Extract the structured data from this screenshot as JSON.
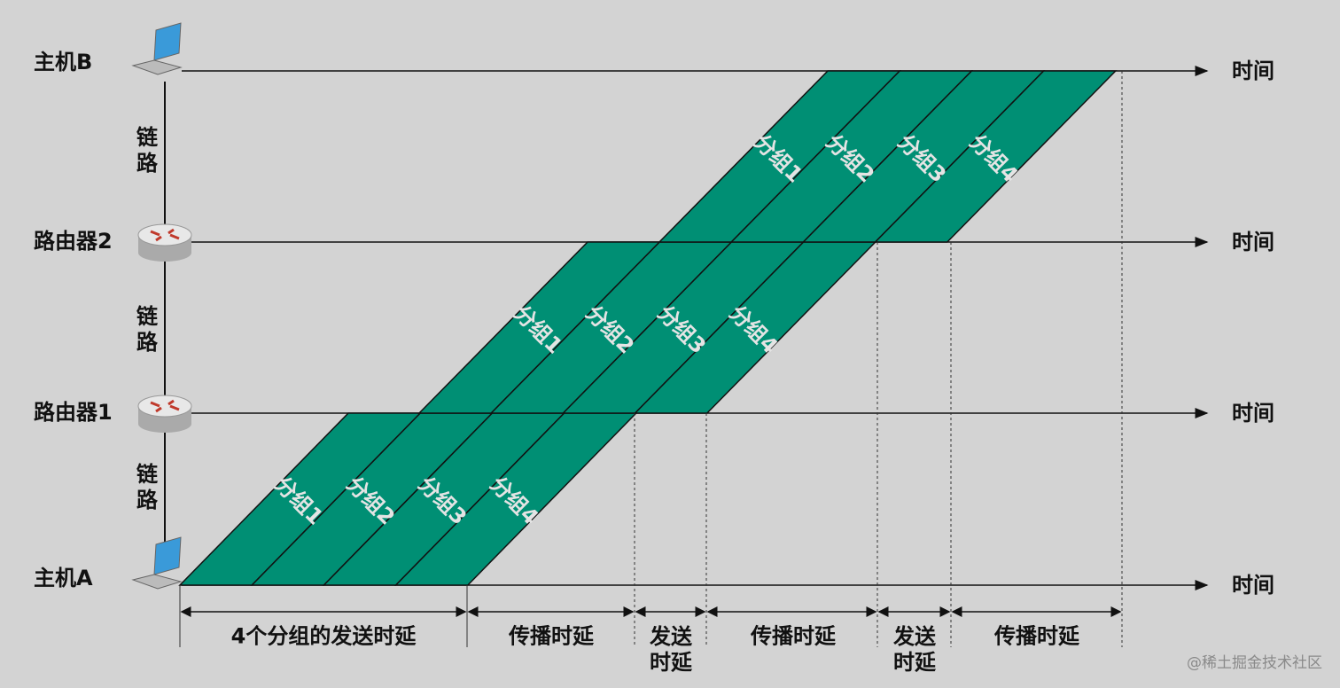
{
  "nodes": [
    {
      "label": "主机B"
    },
    {
      "label": "路由器2"
    },
    {
      "label": "路由器1"
    },
    {
      "label": "主机A"
    }
  ],
  "links": [
    "链路",
    "链路",
    "链路"
  ],
  "time_labels": [
    "时间",
    "时间",
    "时间",
    "时间"
  ],
  "packets": [
    "分组1",
    "分组2",
    "分组3",
    "分组4"
  ],
  "delays": [
    "4个分组的发送时延",
    "传播时延",
    "发送时延",
    "传播时延",
    "发送时延",
    "传播时延"
  ],
  "watermark": "@稀土掘金技术社区"
}
